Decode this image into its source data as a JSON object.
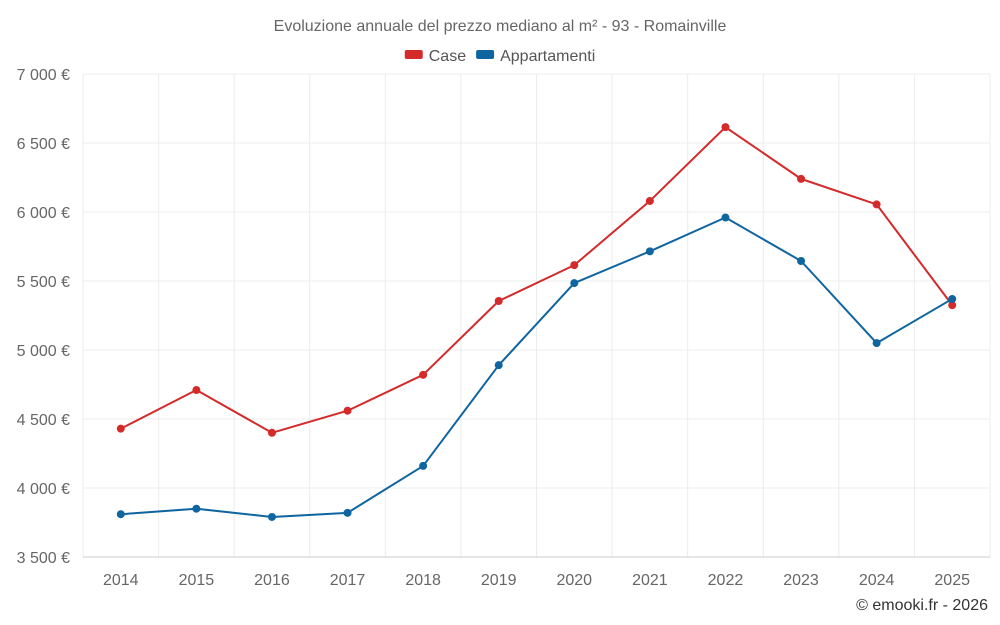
{
  "chart_data": {
    "type": "line",
    "title": "Evoluzione annuale del prezzo mediano al m² - 93 - Romainville",
    "x": [
      "2014",
      "2015",
      "2016",
      "2017",
      "2018",
      "2019",
      "2020",
      "2021",
      "2022",
      "2023",
      "2024",
      "2025"
    ],
    "series": [
      {
        "name": "Case",
        "color": "#d42a2a",
        "values": [
          4430,
          4710,
          4400,
          4560,
          4820,
          5355,
          5615,
          6080,
          6615,
          6240,
          6055,
          5325
        ]
      },
      {
        "name": "Appartamenti",
        "color": "#0e65a0",
        "values": [
          3810,
          3850,
          3790,
          3820,
          4160,
          4890,
          5485,
          5715,
          5960,
          5645,
          5050,
          5370
        ]
      }
    ],
    "ylim": [
      3500,
      7000
    ],
    "yticks": [
      3500,
      4000,
      4500,
      5000,
      5500,
      6000,
      6500,
      7000
    ],
    "ytick_labels": [
      "3 500 €",
      "4 000 €",
      "4 500 €",
      "5 000 €",
      "5 500 €",
      "6 000 €",
      "6 500 €",
      "7 000 €"
    ],
    "legend_position": "top-center",
    "grid": true,
    "xlabel": "",
    "ylabel": ""
  },
  "credit": "© emooki.fr - 2026"
}
